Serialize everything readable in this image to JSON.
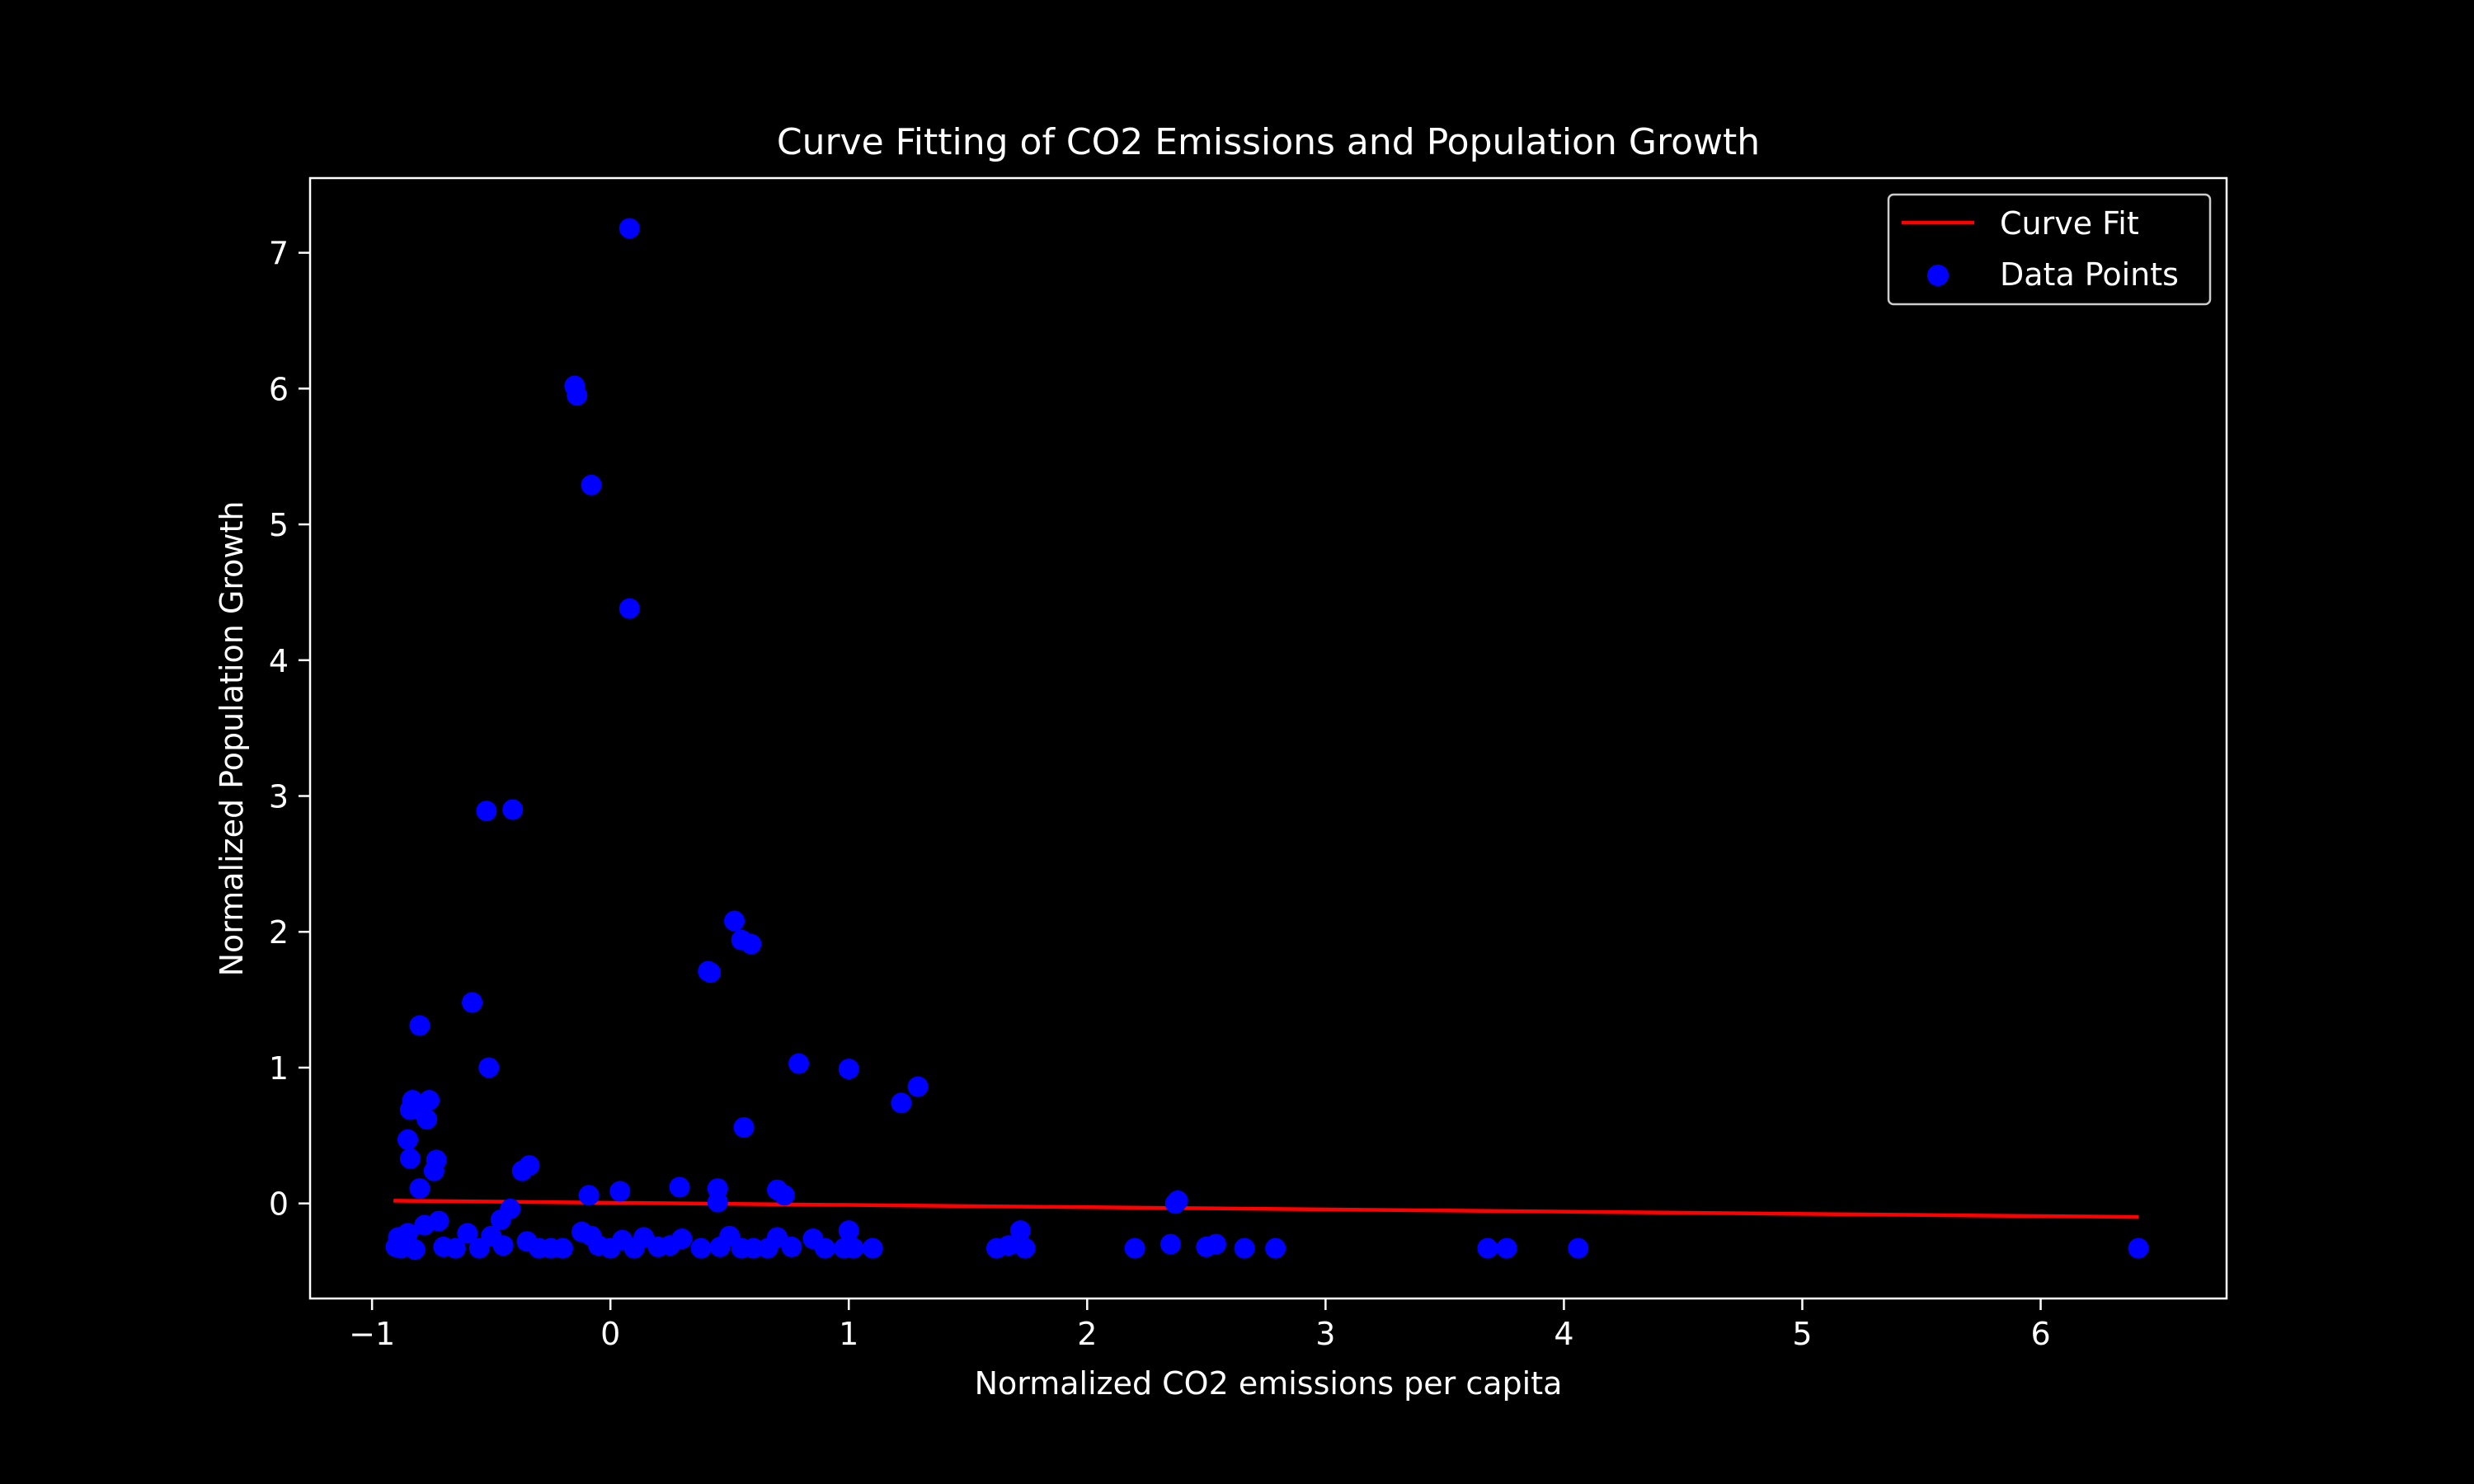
{
  "chart_data": {
    "type": "scatter",
    "title": "Curve Fitting of CO2 Emissions and Population Growth",
    "xlabel": "Normalized CO2 emissions per capita",
    "ylabel": "Normalized Population Growth",
    "xlim": [
      -1.26,
      6.78
    ],
    "ylim": [
      -0.7,
      7.55
    ],
    "x_ticks": [
      -1,
      0,
      1,
      2,
      3,
      4,
      5,
      6
    ],
    "y_ticks": [
      0,
      1,
      2,
      3,
      4,
      5,
      6,
      7
    ],
    "x_tick_labels": [
      "−1",
      "0",
      "1",
      "2",
      "3",
      "4",
      "5",
      "6"
    ],
    "y_tick_labels": [
      "0",
      "1",
      "2",
      "3",
      "4",
      "5",
      "6",
      "7"
    ],
    "grid": false,
    "legend_position": "top-right",
    "background_color": "#000000",
    "foreground_color": "#ffffff",
    "series": [
      {
        "name": "Curve Fit",
        "kind": "line",
        "color": "#ff0000",
        "x": [
          -0.91,
          6.41
        ],
        "y": [
          0.02,
          -0.1
        ]
      },
      {
        "name": "Data Points",
        "kind": "scatter",
        "color": "#0000ff",
        "x": [
          0.08,
          -0.15,
          -0.14,
          -0.08,
          0.08,
          -0.52,
          -0.41,
          0.52,
          0.55,
          0.59,
          0.41,
          0.42,
          -0.58,
          -0.8,
          -0.51,
          0.79,
          1.0,
          1.29,
          1.22,
          0.56,
          -0.83,
          -0.76,
          -0.8,
          -0.84,
          -0.77,
          -0.85,
          -0.73,
          -0.74,
          -0.84,
          -0.37,
          -0.34,
          -0.8,
          0.29,
          0.45,
          0.7,
          0.73,
          0.04,
          -0.09,
          0.45,
          2.38,
          2.37,
          -0.42,
          -0.46,
          -0.78,
          -0.72,
          -0.89,
          -0.85,
          -0.6,
          -0.5,
          -0.35,
          -0.12,
          -0.08,
          0.05,
          0.14,
          0.3,
          0.5,
          0.7,
          0.85,
          1.0,
          -0.88,
          -0.82,
          -0.7,
          -0.55,
          -0.45,
          -0.3,
          -0.2,
          -0.05,
          0.0,
          0.1,
          0.2,
          0.38,
          0.46,
          0.6,
          0.66,
          0.76,
          0.9,
          0.98,
          1.1,
          -0.9,
          -0.65,
          -0.25,
          0.25,
          0.55,
          1.02,
          1.62,
          1.67,
          1.72,
          1.74,
          2.2,
          2.35,
          2.5,
          2.54,
          2.66,
          2.79,
          3.68,
          3.76,
          4.06,
          6.41
        ],
        "y": [
          7.18,
          6.02,
          5.95,
          5.29,
          4.38,
          2.89,
          2.9,
          2.08,
          1.94,
          1.91,
          1.71,
          1.7,
          1.48,
          1.31,
          1.0,
          1.03,
          0.99,
          0.86,
          0.74,
          0.56,
          0.76,
          0.76,
          0.69,
          0.69,
          0.62,
          0.47,
          0.32,
          0.24,
          0.33,
          0.24,
          0.28,
          0.11,
          0.12,
          0.11,
          0.1,
          0.06,
          0.09,
          0.06,
          0.01,
          0.02,
          0.0,
          -0.04,
          -0.12,
          -0.16,
          -0.13,
          -0.25,
          -0.22,
          -0.22,
          -0.24,
          -0.28,
          -0.21,
          -0.24,
          -0.27,
          -0.25,
          -0.26,
          -0.24,
          -0.25,
          -0.26,
          -0.2,
          -0.33,
          -0.34,
          -0.32,
          -0.33,
          -0.31,
          -0.33,
          -0.33,
          -0.31,
          -0.33,
          -0.33,
          -0.32,
          -0.33,
          -0.32,
          -0.33,
          -0.33,
          -0.32,
          -0.33,
          -0.33,
          -0.33,
          -0.32,
          -0.33,
          -0.33,
          -0.31,
          -0.33,
          -0.33,
          -0.33,
          -0.31,
          -0.2,
          -0.33,
          -0.33,
          -0.3,
          -0.32,
          -0.3,
          -0.33,
          -0.33,
          -0.33,
          -0.33,
          -0.33,
          -0.33
        ]
      }
    ]
  }
}
